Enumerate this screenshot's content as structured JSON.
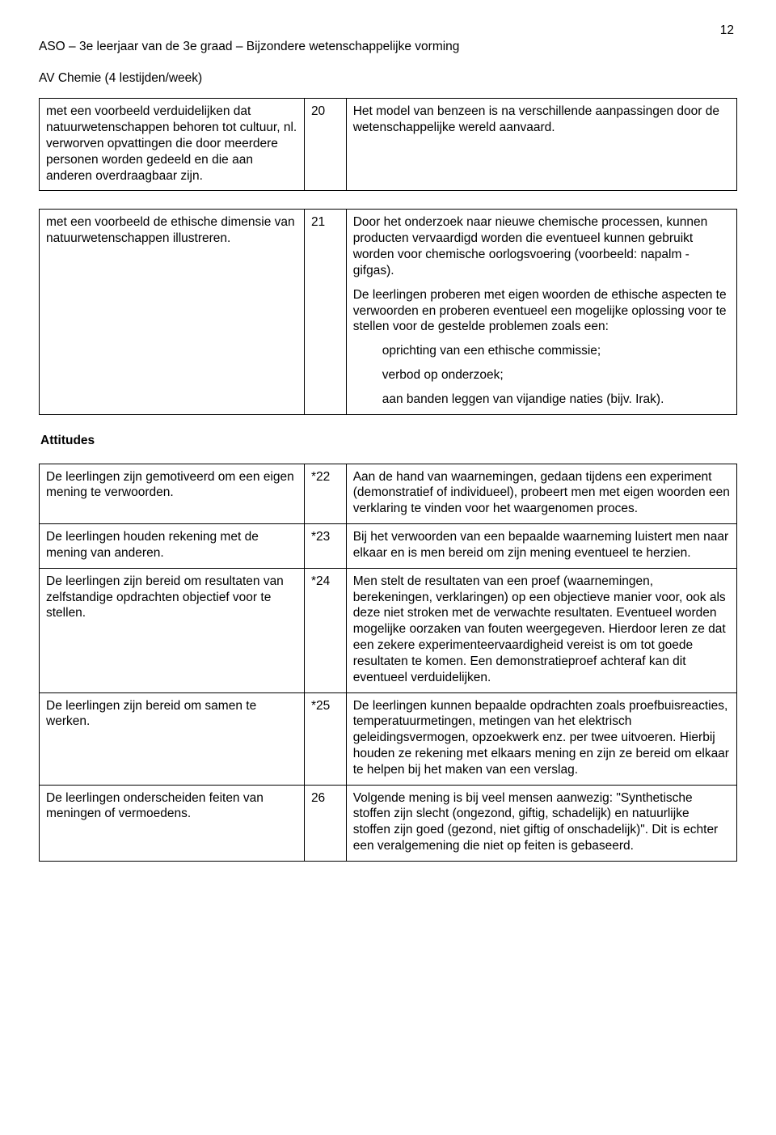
{
  "page_number": "12",
  "header_line1": "ASO – 3e leerjaar van de 3e graad – Bijzondere wetenschappelijke vorming",
  "header_line2": "AV Chemie (4 lestijden/week)",
  "attitudes_heading": "Attitudes",
  "table1": {
    "left": "met een voorbeeld verduidelijken dat natuurwetenschappen behoren tot cultuur, nl. verworven opvattingen die door meerdere personen worden gedeeld en die aan anderen overdraagbaar zijn.",
    "num": "20",
    "right": "Het model van benzeen is na verschillende aanpassingen door de wetenschappelijke wereld aanvaard."
  },
  "table2": {
    "left": "met een voorbeeld de ethische dimensie van natuurwetenschappen illustreren.",
    "num": "21",
    "right_p1": "Door het onderzoek naar nieuwe chemische processen, kunnen producten vervaardigd worden die eventueel kunnen gebruikt worden voor chemische oorlogsvoering (voorbeeld: napalm - gifgas).",
    "right_p2": "De leerlingen proberen met eigen woorden de ethische aspecten te verwoorden en proberen eventueel een mogelijke oplossing voor te stellen voor de gestelde problemen zoals een:",
    "right_b1": "oprichting van een ethische commissie;",
    "right_b2": "verbod op onderzoek;",
    "right_b3": "aan banden leggen van vijandige naties (bijv. Irak)."
  },
  "table3_rows": [
    {
      "left": "De leerlingen zijn gemotiveerd om een eigen mening te verwoorden.",
      "num": "*22",
      "right": "Aan de hand van waarnemingen, gedaan tijdens een experiment (demonstratief of individueel), probeert men met eigen woorden een verklaring te vinden voor het waargenomen proces."
    },
    {
      "left": "De leerlingen houden rekening met de mening van anderen.",
      "num": "*23",
      "right": "Bij het verwoorden van een bepaalde waarneming luistert men naar elkaar en is men bereid om zijn mening eventueel te herzien."
    },
    {
      "left": "De leerlingen zijn bereid om resultaten van zelfstandige opdrachten objectief voor te stellen.",
      "num": "*24",
      "right": "Men stelt de resultaten van een proef (waarnemingen, berekeningen, verklaringen) op een objectieve manier voor, ook als deze niet stroken met de verwachte resultaten. Eventueel worden mogelijke oorzaken van fouten weergegeven. Hierdoor leren ze dat een zekere experimenteervaardigheid vereist is om tot goede resultaten te komen. Een demonstratieproef achteraf kan dit eventueel verduidelijken."
    },
    {
      "left": "De leerlingen zijn bereid om samen te werken.",
      "num": "*25",
      "right": "De leerlingen kunnen bepaalde opdrachten zoals proefbuisreacties, temperatuurmetingen, metingen van het elektrisch geleidingsvermogen, opzoekwerk enz. per twee uitvoeren. Hierbij houden ze rekening met elkaars mening en zijn ze bereid om elkaar te helpen bij het maken van een verslag."
    },
    {
      "left": "De leerlingen onderscheiden feiten van meningen of vermoedens.",
      "num": "26",
      "right": "Volgende mening is bij veel mensen aanwezig: \"Synthetische stoffen zijn slecht (ongezond, giftig, schadelijk) en natuurlijke stoffen zijn goed (gezond, niet giftig of onschadelijk)\". Dit is echter een veralgemening die niet op feiten is gebaseerd."
    }
  ]
}
